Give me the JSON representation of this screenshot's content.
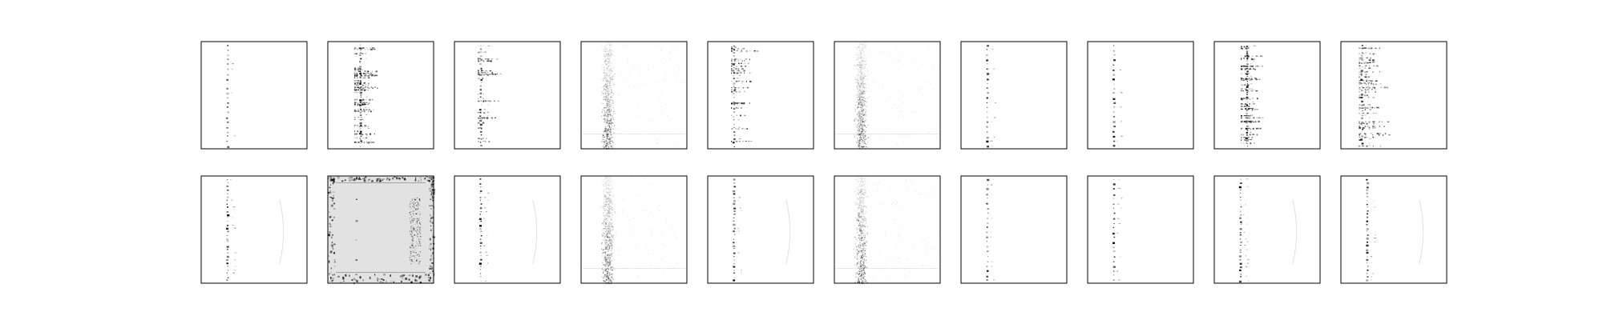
{
  "figure": {
    "rows": 2,
    "cols": 10,
    "background": "#ffffff",
    "frame_color": "#000000",
    "ink_color": "#000000"
  },
  "panels": [
    {
      "row": 0,
      "col": 0,
      "pattern": "sparse-dot-column"
    },
    {
      "row": 0,
      "col": 1,
      "pattern": "dense-noisy-column"
    },
    {
      "row": 0,
      "col": 2,
      "pattern": "dot-column-with-side-streaks"
    },
    {
      "row": 0,
      "col": 3,
      "pattern": "fuzzy-gray-band"
    },
    {
      "row": 0,
      "col": 4,
      "pattern": "dot-column-with-side-streaks"
    },
    {
      "row": 0,
      "col": 5,
      "pattern": "fuzzy-gray-band"
    },
    {
      "row": 0,
      "col": 6,
      "pattern": "sparse-dot-column"
    },
    {
      "row": 0,
      "col": 7,
      "pattern": "sparse-dot-column"
    },
    {
      "row": 0,
      "col": 8,
      "pattern": "dense-noisy-column"
    },
    {
      "row": 0,
      "col": 9,
      "pattern": "multi-column-streaks"
    },
    {
      "row": 1,
      "col": 0,
      "pattern": "dot-column-faint-arc"
    },
    {
      "row": 1,
      "col": 1,
      "pattern": "gray-field-with-edges"
    },
    {
      "row": 1,
      "col": 2,
      "pattern": "dot-column-faint-arc"
    },
    {
      "row": 1,
      "col": 3,
      "pattern": "fuzzy-gray-band"
    },
    {
      "row": 1,
      "col": 4,
      "pattern": "dot-column-faint-arc"
    },
    {
      "row": 1,
      "col": 5,
      "pattern": "fuzzy-gray-band"
    },
    {
      "row": 1,
      "col": 6,
      "pattern": "sparse-dot-column"
    },
    {
      "row": 1,
      "col": 7,
      "pattern": "sparse-dot-column"
    },
    {
      "row": 1,
      "col": 8,
      "pattern": "dot-column-faint-arc"
    },
    {
      "row": 1,
      "col": 9,
      "pattern": "dot-column-faint-arc"
    }
  ]
}
